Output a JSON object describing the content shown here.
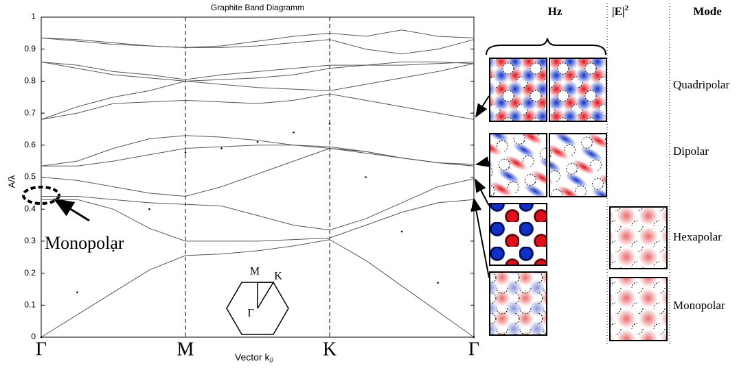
{
  "chart_data": {
    "type": "line",
    "title": "Graphite Band Diagramm",
    "ylabel": "A/λ",
    "xlabel": "Vector k",
    "xlabel_sub": "//",
    "categories": [
      "Γ",
      null,
      null,
      null,
      "M",
      null,
      null,
      null,
      "K",
      null,
      null,
      null,
      "Γ"
    ],
    "ylim": [
      0,
      1
    ],
    "yticks": [
      0,
      0.1,
      0.2,
      0.3,
      0.4,
      0.5,
      0.6,
      0.7,
      0.8,
      0.9,
      1
    ],
    "color": "#555555",
    "series": [
      {
        "values": [
          0,
          0.07,
          0.14,
          0.21,
          0.255,
          0.26,
          0.27,
          0.285,
          0.305,
          0.24,
          0.16,
          0.08,
          0
        ]
      },
      {
        "values": [
          0.43,
          0.43,
          0.4,
          0.34,
          0.3,
          0.3,
          0.3,
          0.305,
          0.31,
          0.35,
          0.39,
          0.42,
          0.43
        ]
      },
      {
        "values": [
          0.44,
          0.44,
          0.43,
          0.42,
          0.415,
          0.41,
          0.38,
          0.35,
          0.335,
          0.37,
          0.42,
          0.47,
          0.495
        ]
      },
      {
        "values": [
          0.5,
          0.49,
          0.47,
          0.45,
          0.44,
          0.47,
          0.51,
          0.55,
          0.59,
          0.58,
          0.56,
          0.545,
          0.535
        ]
      },
      {
        "values": [
          0.535,
          0.55,
          0.59,
          0.62,
          0.63,
          0.625,
          0.615,
          0.6,
          0.59,
          0.575,
          0.56,
          0.545,
          0.535
        ]
      },
      {
        "values": [
          0.535,
          0.535,
          0.55,
          0.57,
          0.59,
          0.595,
          0.6,
          0.6,
          0.595,
          0.58,
          0.56,
          0.545,
          0.54
        ]
      },
      {
        "values": [
          0.68,
          0.7,
          0.73,
          0.735,
          0.74,
          0.735,
          0.73,
          0.74,
          0.76,
          0.74,
          0.72,
          0.7,
          0.68
        ]
      },
      {
        "values": [
          0.68,
          0.72,
          0.75,
          0.77,
          0.8,
          0.79,
          0.78,
          0.775,
          0.77,
          0.79,
          0.81,
          0.83,
          0.855
        ]
      },
      {
        "values": [
          0.86,
          0.84,
          0.82,
          0.81,
          0.8,
          0.805,
          0.81,
          0.82,
          0.84,
          0.85,
          0.85,
          0.855,
          0.86
        ]
      },
      {
        "values": [
          0.86,
          0.85,
          0.83,
          0.82,
          0.805,
          0.82,
          0.83,
          0.84,
          0.85,
          0.85,
          0.86,
          0.86,
          0.855
        ]
      },
      {
        "values": [
          0.935,
          0.93,
          0.92,
          0.91,
          0.905,
          0.91,
          0.925,
          0.94,
          0.95,
          0.94,
          0.96,
          0.94,
          0.935
        ]
      },
      {
        "values": [
          0.935,
          0.925,
          0.915,
          0.91,
          0.905,
          0.905,
          0.91,
          0.92,
          0.93,
          0.9,
          0.885,
          0.9,
          0.93
        ]
      },
      {
        "marker": "dot",
        "color": "#000000",
        "values": [
          0,
          0.14,
          0.27,
          0.4,
          0.577,
          0.59,
          0.61,
          0.64,
          0.667,
          0.5,
          0.33,
          0.17,
          0
        ]
      }
    ],
    "annotation": "Monopolar"
  },
  "inset": {
    "labels": [
      "M",
      "K",
      "Γ"
    ]
  },
  "panel": {
    "hz": "Hz",
    "e_base": "|E|",
    "e_sup": "2",
    "mode": "Mode",
    "modes": [
      "Quadripolar",
      "Dipolar",
      "Hexapolar",
      "Monopolar"
    ]
  }
}
